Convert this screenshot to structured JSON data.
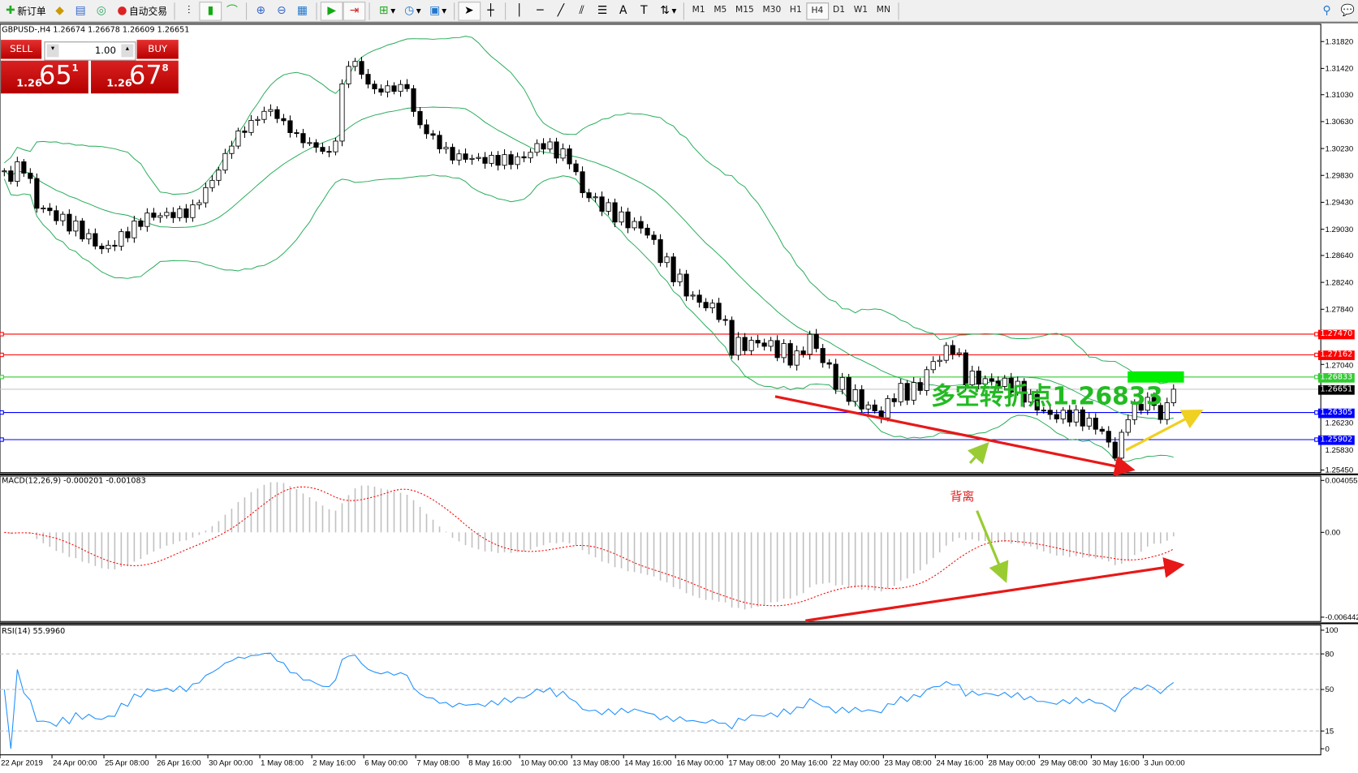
{
  "toolbar": {
    "new_order": "新订单",
    "auto_trading": "自动交易",
    "timeframes": [
      "M1",
      "M5",
      "M15",
      "M30",
      "H1",
      "H4",
      "D1",
      "W1",
      "MN"
    ],
    "active_timeframe": "H4",
    "icons": [
      "new-order-icon",
      "market-watch-icon",
      "navigator-icon",
      "signals-icon",
      "auto-trading-icon",
      "bar-chart-icon",
      "candlestick-icon",
      "line-chart-icon",
      "zoom-in-icon",
      "zoom-out-icon",
      "tile-icon",
      "autoscroll-icon",
      "chart-shift-icon",
      "indicators-icon",
      "periods-icon",
      "templates-icon",
      "cursor-icon",
      "crosshair-icon",
      "vertical-line-icon",
      "horizontal-line-icon",
      "trendline-icon",
      "equidistant-channel-icon",
      "fibonacci-icon",
      "text-icon",
      "text-label-icon",
      "arrows-icon",
      "search-icon",
      "chat-icon"
    ]
  },
  "chart": {
    "symbol_line": "GBPUSD-,H4  1.26674 1.26678 1.26609 1.26651",
    "sell_label": "SELL",
    "buy_label": "BUY",
    "lot": "1.00",
    "bid": {
      "prefix": "1.26",
      "main": "65",
      "sup": "1"
    },
    "ask": {
      "prefix": "1.26",
      "main": "67",
      "sup": "8"
    },
    "price_ticks": [
      "1.31820",
      "1.31420",
      "1.31030",
      "1.30630",
      "1.30230",
      "1.29830",
      "1.29430",
      "1.29030",
      "1.28640",
      "1.28240",
      "1.27840",
      "1.27040",
      "1.26230",
      "1.25830",
      "1.25450"
    ],
    "levels": [
      {
        "price": "1.27470",
        "color": "#ff0000"
      },
      {
        "price": "1.27162",
        "color": "#ff0000"
      },
      {
        "price": "1.26833",
        "color": "#33cc33"
      },
      {
        "price": "1.26651",
        "color": "#000000",
        "line": "#c0c0c0"
      },
      {
        "price": "1.26305",
        "color": "#0000ff"
      },
      {
        "price": "1.25902",
        "color": "#0000ff"
      }
    ],
    "annotation": "多空转折点1.26833",
    "closes": [
      1.298,
      1.2999,
      1.2941,
      1.2903,
      1.2871,
      1.2922,
      1.2928,
      1.2986,
      1.3038,
      1.3083,
      1.3038,
      1.3012,
      1.3115,
      1.316,
      1.3109,
      1.3115,
      1.3064,
      1.3012,
      1.3006,
      1.3006,
      1.3031,
      1.3006,
      1.2961,
      1.2916,
      1.2903,
      1.2858,
      1.28,
      1.278,
      1.2729,
      1.2735,
      1.271,
      1.2742,
      1.2677,
      1.2639,
      1.2626,
      1.2658,
      1.2665,
      1.2703,
      1.2729,
      1.2684,
      1.2677,
      1.2671,
      1.2626,
      1.2626,
      1.2607,
      1.2562,
      1.2626,
      1.2652,
      1.262,
      1.2665
    ],
    "colors": {
      "bands": "#22aa55",
      "bull": "#ffffff",
      "bear": "#000000"
    }
  },
  "macd": {
    "label": "MACD(12,26,9) -0.000201 -0.001083",
    "ticks": [
      "0.004055",
      "0.00",
      "-0.006442"
    ],
    "annotation": "背离",
    "colors": {
      "hist": "#c0c0c0",
      "signal": "#ff0000"
    }
  },
  "rsi": {
    "label": "RSI(14) 55.9960",
    "ticks": [
      "100",
      "80",
      "50",
      "15",
      "0"
    ],
    "color": "#1e90ff"
  },
  "time_labels": [
    "22 Apr 2019",
    "24 Apr 00:00",
    "25 Apr 08:00",
    "26 Apr 16:00",
    "30 Apr 00:00",
    "1 May 08:00",
    "2 May 16:00",
    "6 May 00:00",
    "7 May 08:00",
    "8 May 16:00",
    "10 May 00:00",
    "13 May 08:00",
    "14 May 16:00",
    "16 May 00:00",
    "17 May 08:00",
    "20 May 16:00",
    "22 May 00:00",
    "23 May 08:00",
    "24 May 16:00",
    "28 May 00:00",
    "29 May 08:00",
    "30 May 16:00",
    "3 Jun 00:00"
  ]
}
